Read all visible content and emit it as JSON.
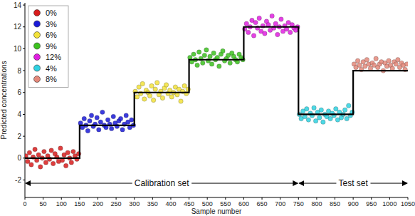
{
  "chart_data": {
    "type": "scatter",
    "x_label": "Sample number",
    "y_label": "Predicted concentrations",
    "xlim": [
      0,
      1050
    ],
    "ylim": [
      -3.6,
      14.2
    ],
    "xticks": [
      0,
      50,
      100,
      150,
      200,
      250,
      300,
      350,
      400,
      450,
      500,
      550,
      600,
      650,
      700,
      750,
      800,
      850,
      900,
      950,
      1000,
      1050
    ],
    "yticks": [
      -2,
      0,
      2,
      4,
      6,
      8,
      10,
      12,
      14
    ],
    "grid": false,
    "legend": "upper left",
    "annotations": [
      {
        "text": "Calibration set",
        "x_range": [
          0,
          750
        ],
        "y": -2.3
      },
      {
        "text": "Test set",
        "x_range": [
          750,
          1050
        ],
        "y": -2.3
      }
    ],
    "series": [
      {
        "name": "0%",
        "type": "scatter",
        "marker": "circle",
        "color": "#d81c1c",
        "x": [
          2.5,
          7.5,
          12.5,
          17.5,
          22.5,
          27.5,
          32.5,
          37.5,
          42.5,
          47.5,
          52.5,
          57.5,
          62.5,
          67.5,
          72.5,
          77.5,
          82.5,
          87.5,
          92.5,
          97.5,
          102.5,
          107.5,
          112.5,
          117.5,
          122.5,
          127.5,
          132.5,
          137.5,
          142.5,
          147.5
        ],
        "values": [
          0.2,
          -0.3,
          0.5,
          -0.6,
          0.1,
          0.8,
          -0.2,
          0.3,
          -0.8,
          0.0,
          0.6,
          -0.4,
          0.2,
          -0.1,
          0.7,
          -0.5,
          0.4,
          0.1,
          -0.3,
          0.9,
          -0.2,
          0.3,
          -0.7,
          0.5,
          0.0,
          -0.4,
          0.6,
          0.2,
          -0.1,
          0.4
        ]
      },
      {
        "name": "3%",
        "type": "scatter",
        "marker": "circle",
        "color": "#1a1ad8",
        "x": [
          152.5,
          157.5,
          162.5,
          167.5,
          172.5,
          177.5,
          182.5,
          187.5,
          192.5,
          197.5,
          202.5,
          207.5,
          212.5,
          217.5,
          222.5,
          227.5,
          232.5,
          237.5,
          242.5,
          247.5,
          252.5,
          257.5,
          262.5,
          267.5,
          272.5,
          277.5,
          282.5,
          287.5,
          292.5,
          297.5
        ],
        "values": [
          3.2,
          2.8,
          3.6,
          3.0,
          2.5,
          3.4,
          3.9,
          2.9,
          3.1,
          3.7,
          2.6,
          3.3,
          4.2,
          3.0,
          2.8,
          3.5,
          3.1,
          2.7,
          3.8,
          3.2,
          2.9,
          3.4,
          3.6,
          2.6,
          3.1,
          3.9,
          3.3,
          2.8,
          3.5,
          3.0
        ]
      },
      {
        "name": "6%",
        "type": "scatter",
        "marker": "circle",
        "color": "#f2e23a",
        "x": [
          302.5,
          307.5,
          312.5,
          317.5,
          322.5,
          327.5,
          332.5,
          337.5,
          342.5,
          347.5,
          352.5,
          357.5,
          362.5,
          367.5,
          372.5,
          377.5,
          382.5,
          387.5,
          392.5,
          397.5,
          402.5,
          407.5,
          412.5,
          417.5,
          422.5,
          427.5,
          432.5,
          437.5,
          442.5,
          447.5
        ],
        "values": [
          6.1,
          5.6,
          6.5,
          5.9,
          6.8,
          5.4,
          6.2,
          6.0,
          5.7,
          6.6,
          5.3,
          6.3,
          6.9,
          5.8,
          6.1,
          5.5,
          6.4,
          6.7,
          5.9,
          6.2,
          5.6,
          6.0,
          6.5,
          5.8,
          6.3,
          5.2,
          6.1,
          6.6,
          5.9,
          6.3
        ]
      },
      {
        "name": "9%",
        "type": "scatter",
        "marker": "circle",
        "color": "#3cc21e",
        "x": [
          452.5,
          457.5,
          462.5,
          467.5,
          472.5,
          477.5,
          482.5,
          487.5,
          492.5,
          497.5,
          502.5,
          507.5,
          512.5,
          517.5,
          522.5,
          527.5,
          532.5,
          537.5,
          542.5,
          547.5,
          552.5,
          557.5,
          562.5,
          567.5,
          572.5,
          577.5,
          582.5,
          587.5,
          592.5,
          597.5
        ],
        "values": [
          9.2,
          8.8,
          9.5,
          9.0,
          8.5,
          9.7,
          9.1,
          8.7,
          9.4,
          9.9,
          8.9,
          9.3,
          8.6,
          9.6,
          9.0,
          9.2,
          8.4,
          9.5,
          9.8,
          8.9,
          9.1,
          9.4,
          8.7,
          9.6,
          9.3,
          9.0,
          8.8,
          9.5,
          9.2,
          9.0
        ]
      },
      {
        "name": "12%",
        "type": "scatter",
        "marker": "circle",
        "color": "#e01ee0",
        "x": [
          602.5,
          607.5,
          612.5,
          617.5,
          622.5,
          627.5,
          632.5,
          637.5,
          642.5,
          647.5,
          652.5,
          657.5,
          662.5,
          667.5,
          672.5,
          677.5,
          682.5,
          687.5,
          692.5,
          697.5,
          702.5,
          707.5,
          712.5,
          717.5,
          722.5,
          727.5,
          732.5,
          737.5,
          742.5,
          747.5
        ],
        "values": [
          11.8,
          12.3,
          11.5,
          12.0,
          12.6,
          11.2,
          12.4,
          11.9,
          12.8,
          11.6,
          12.1,
          11.4,
          12.5,
          12.2,
          11.7,
          13.0,
          11.9,
          12.3,
          11.3,
          12.0,
          12.7,
          11.6,
          12.1,
          11.8,
          12.4,
          11.5,
          12.2,
          11.9,
          11.7,
          12.0
        ]
      },
      {
        "name": "4%",
        "type": "scatter",
        "marker": "circle",
        "color": "#2ed2e2",
        "x": [
          752.5,
          757.5,
          762.5,
          767.5,
          772.5,
          777.5,
          782.5,
          787.5,
          792.5,
          797.5,
          802.5,
          807.5,
          812.5,
          817.5,
          822.5,
          827.5,
          832.5,
          837.5,
          842.5,
          847.5,
          852.5,
          857.5,
          862.5,
          867.5,
          872.5,
          877.5,
          882.5,
          887.5,
          892.5,
          897.5
        ],
        "values": [
          4.0,
          3.6,
          4.3,
          3.8,
          4.5,
          3.5,
          4.1,
          3.9,
          4.6,
          3.4,
          4.2,
          3.7,
          4.4,
          3.3,
          4.0,
          3.8,
          4.3,
          3.6,
          4.1,
          3.9,
          4.5,
          3.5,
          4.2,
          3.7,
          4.0,
          4.4,
          3.6,
          4.8,
          3.9,
          4.2
        ]
      },
      {
        "name": "8%",
        "type": "scatter",
        "marker": "circle",
        "color": "#e4887a",
        "x": [
          902.5,
          907.5,
          912.5,
          917.5,
          922.5,
          927.5,
          932.5,
          937.5,
          942.5,
          947.5,
          952.5,
          957.5,
          962.5,
          967.5,
          972.5,
          977.5,
          982.5,
          987.5,
          992.5,
          997.5,
          1002.5,
          1007.5,
          1012.5,
          1017.5,
          1022.5,
          1027.5,
          1032.5,
          1037.5,
          1042.5,
          1047.5
        ],
        "values": [
          8.6,
          8.3,
          8.9,
          8.5,
          8.1,
          8.8,
          8.4,
          9.0,
          8.6,
          8.2,
          8.7,
          8.5,
          9.1,
          8.3,
          8.6,
          8.8,
          8.0,
          8.7,
          8.4,
          8.9,
          8.5,
          8.2,
          8.8,
          8.6,
          9.0,
          8.3,
          8.7,
          8.5,
          8.1,
          8.6
        ]
      },
      {
        "type": "line",
        "line_style": "solid",
        "color": "#000000",
        "x": [
          0,
          150,
          150,
          300,
          300,
          450,
          450,
          600,
          600,
          750,
          750,
          900,
          900,
          1050
        ],
        "values": [
          0,
          0,
          3,
          3,
          6,
          6,
          9,
          9,
          12,
          12,
          4,
          4,
          8,
          8
        ]
      }
    ]
  }
}
